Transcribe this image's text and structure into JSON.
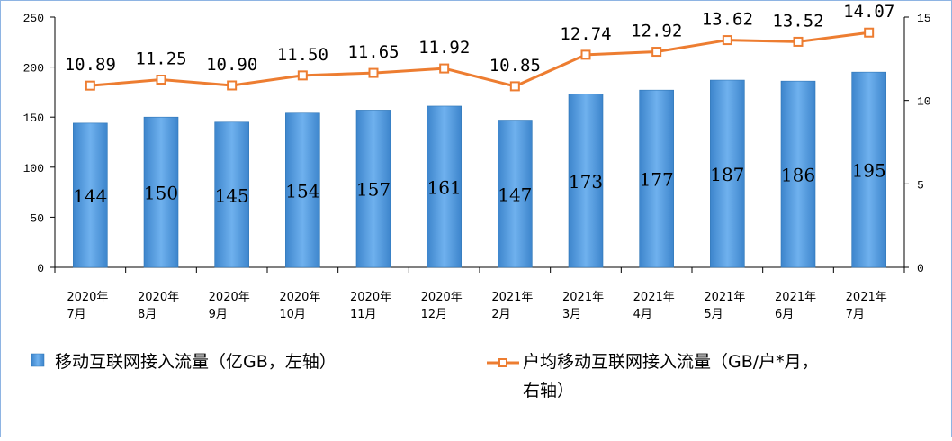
{
  "chart_data": {
    "type": "bar",
    "categories": [
      [
        "2020年",
        "7月"
      ],
      [
        "2020年",
        "8月"
      ],
      [
        "2020年",
        "9月"
      ],
      [
        "2020年",
        "10月"
      ],
      [
        "2020年",
        "11月"
      ],
      [
        "2020年",
        "12月"
      ],
      [
        "2021年",
        "2月"
      ],
      [
        "2021年",
        "3月"
      ],
      [
        "2021年",
        "4月"
      ],
      [
        "2021年",
        "5月"
      ],
      [
        "2021年",
        "6月"
      ],
      [
        "2021年",
        "7月"
      ]
    ],
    "series": [
      {
        "name": "移动互联网接入流量（亿GB，左轴）",
        "type": "bar",
        "axis": "left",
        "color": "#5b9bd5",
        "values": [
          144,
          150,
          145,
          154,
          157,
          161,
          147,
          173,
          177,
          187,
          186,
          195
        ],
        "labels": [
          "144",
          "150",
          "145",
          "154",
          "157",
          "161",
          "147",
          "173",
          "177",
          "187",
          "186",
          "195"
        ]
      },
      {
        "name": "户均移动互联网接入流量（GB/户*月，右轴）",
        "name_lines": [
          "户均移动互联网接入流量（GB/户*月，",
          "右轴）"
        ],
        "type": "line",
        "axis": "right",
        "color": "#ed7d31",
        "values": [
          10.89,
          11.25,
          10.9,
          11.5,
          11.65,
          11.92,
          10.85,
          12.74,
          12.92,
          13.62,
          13.52,
          14.07
        ],
        "labels": [
          "10.89",
          "11.25",
          "10.90",
          "11.50",
          "11.65",
          "11.92",
          "10.85",
          "12.74",
          "12.92",
          "13.62",
          "13.52",
          "14.07"
        ]
      }
    ],
    "y_left": {
      "range": [
        0,
        250
      ],
      "ticks": [
        "0",
        "50",
        "100",
        "150",
        "200",
        "250"
      ]
    },
    "y_right": {
      "range": [
        0,
        15
      ],
      "ticks": [
        "0",
        "5",
        "10",
        "15"
      ]
    },
    "grid": false,
    "legend": "bottom"
  }
}
